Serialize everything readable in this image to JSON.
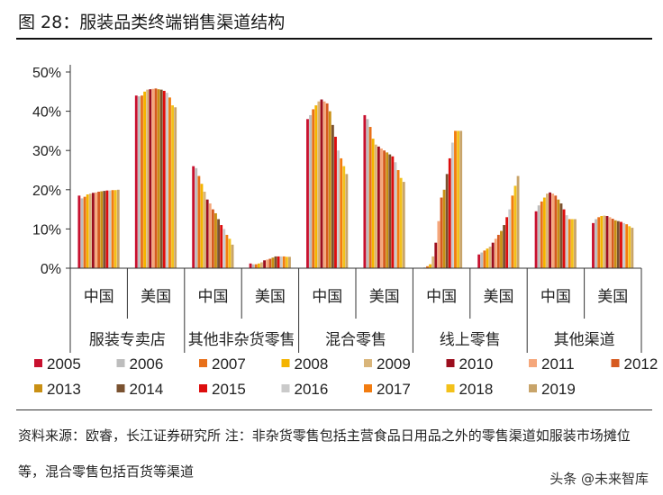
{
  "figure": {
    "title": "图 28：服装品类终端销售渠道结构",
    "source_note": "资料来源：欧睿，长江证券研究所 注：非杂货零售包括主营食品日用品之外的零售渠道如服装市场摊位等，混合零售包括百货等渠道",
    "watermark": "头条 @未来智库"
  },
  "chart_data": {
    "type": "bar",
    "title": "服装品类终端销售渠道结构",
    "xlabel": "",
    "ylabel": "",
    "ylim": [
      0,
      0.5
    ],
    "ytick_values": [
      0,
      0.1,
      0.2,
      0.3,
      0.4,
      0.5
    ],
    "ytick_labels": [
      "0%",
      "10%",
      "20%",
      "30%",
      "40%",
      "50%"
    ],
    "grid": false,
    "legend_position": "bottom",
    "years": [
      "2005",
      "2006",
      "2007",
      "2008",
      "2009",
      "2010",
      "2011",
      "2012",
      "2013",
      "2014",
      "2015",
      "2016",
      "2017",
      "2018",
      "2019"
    ],
    "year_colors": [
      "#c8102e",
      "#bdbdbd",
      "#e8701a",
      "#f4b400",
      "#d9b57a",
      "#9c0e1e",
      "#f5a77b",
      "#d65a1f",
      "#c99014",
      "#7a5230",
      "#dd0d0d",
      "#cacaca",
      "#f27c10",
      "#f3c11a",
      "#c8a46a"
    ],
    "groups": [
      "服装专卖店",
      "其他非杂货零售",
      "混合零售",
      "线上零售",
      "其他渠道"
    ],
    "subgroups": [
      "中国",
      "美国"
    ],
    "series": [
      {
        "group": "服装专卖店",
        "country": "中国",
        "values": [
          0.185,
          0.178,
          0.182,
          0.188,
          0.19,
          0.192,
          0.193,
          0.195,
          0.196,
          0.197,
          0.198,
          0.198,
          0.199,
          0.199,
          0.2
        ]
      },
      {
        "group": "服装专卖店",
        "country": "美国",
        "values": [
          0.44,
          0.438,
          0.44,
          0.45,
          0.455,
          0.456,
          0.457,
          0.458,
          0.456,
          0.455,
          0.452,
          0.447,
          0.435,
          0.415,
          0.41
        ]
      },
      {
        "group": "其他非杂货零售",
        "country": "中国",
        "values": [
          0.26,
          0.255,
          0.235,
          0.215,
          0.195,
          0.175,
          0.165,
          0.15,
          0.14,
          0.125,
          0.11,
          0.1,
          0.085,
          0.075,
          0.06
        ]
      },
      {
        "group": "其他非杂货零售",
        "country": "美国",
        "values": [
          0.012,
          0.01,
          0.01,
          0.012,
          0.015,
          0.02,
          0.022,
          0.024,
          0.027,
          0.03,
          0.03,
          0.03,
          0.03,
          0.029,
          0.029
        ]
      },
      {
        "group": "混合零售",
        "country": "中国",
        "values": [
          0.38,
          0.39,
          0.405,
          0.415,
          0.425,
          0.43,
          0.425,
          0.42,
          0.4,
          0.365,
          0.335,
          0.3,
          0.28,
          0.26,
          0.24
        ]
      },
      {
        "group": "混合零售",
        "country": "美国",
        "values": [
          0.39,
          0.38,
          0.36,
          0.33,
          0.315,
          0.31,
          0.305,
          0.3,
          0.295,
          0.29,
          0.285,
          0.27,
          0.25,
          0.23,
          0.22
        ]
      },
      {
        "group": "线上零售",
        "country": "中国",
        "values": [
          0.0,
          0.002,
          0.005,
          0.01,
          0.03,
          0.065,
          0.12,
          0.18,
          0.2,
          0.24,
          0.28,
          0.32,
          0.35,
          0.35,
          0.35
        ]
      },
      {
        "group": "线上零售",
        "country": "美国",
        "values": [
          0.035,
          0.04,
          0.045,
          0.05,
          0.055,
          0.065,
          0.075,
          0.085,
          0.095,
          0.11,
          0.13,
          0.15,
          0.185,
          0.21,
          0.235
        ]
      },
      {
        "group": "其他渠道",
        "country": "中国",
        "values": [
          0.145,
          0.16,
          0.17,
          0.18,
          0.19,
          0.193,
          0.19,
          0.185,
          0.175,
          0.165,
          0.15,
          0.135,
          0.125,
          0.125,
          0.125
        ]
      },
      {
        "group": "其他渠道",
        "country": "美国",
        "values": [
          0.115,
          0.125,
          0.13,
          0.133,
          0.134,
          0.133,
          0.13,
          0.126,
          0.122,
          0.12,
          0.118,
          0.115,
          0.112,
          0.107,
          0.103
        ]
      }
    ]
  }
}
